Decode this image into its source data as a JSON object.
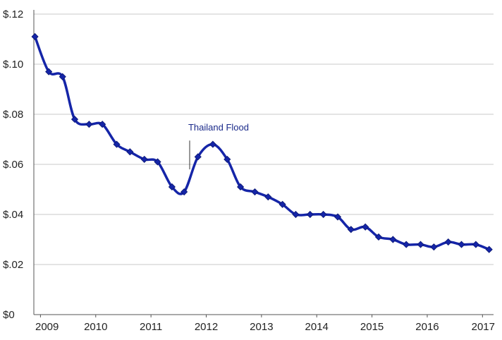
{
  "chart_data": {
    "type": "line",
    "title": "",
    "xlabel": "",
    "ylabel": "",
    "x_ticks": [
      "2009",
      "2010",
      "2011",
      "2012",
      "2013",
      "2014",
      "2015",
      "2016",
      "2017"
    ],
    "y_ticks": [
      "$0",
      "$.02",
      "$.04",
      "$.06",
      "$.08",
      "$.10",
      "$.12"
    ],
    "ylim": [
      0,
      0.12
    ],
    "grid": true,
    "line_color": "#1525a8",
    "annotation": {
      "text": "Thailand Flood",
      "x": 2011.7
    },
    "series": [
      {
        "x": [
          2008.9,
          2009.15,
          2009.4,
          2009.62,
          2009.88,
          2010.12,
          2010.38,
          2010.62,
          2010.88,
          2011.12,
          2011.38,
          2011.6,
          2011.85,
          2012.12,
          2012.38,
          2012.62,
          2012.88,
          2013.12,
          2013.38,
          2013.62,
          2013.88,
          2014.12,
          2014.38,
          2014.62,
          2014.88,
          2015.12,
          2015.38,
          2015.62,
          2015.88,
          2016.12,
          2016.38,
          2016.62,
          2016.88,
          2017.12
        ],
        "y": [
          0.111,
          0.097,
          0.095,
          0.078,
          0.076,
          0.076,
          0.068,
          0.065,
          0.062,
          0.061,
          0.051,
          0.049,
          0.063,
          0.068,
          0.062,
          0.051,
          0.049,
          0.047,
          0.044,
          0.04,
          0.04,
          0.04,
          0.039,
          0.034,
          0.035,
          0.031,
          0.03,
          0.028,
          0.028,
          0.027,
          0.029,
          0.028,
          0.028,
          0.026
        ]
      }
    ]
  }
}
